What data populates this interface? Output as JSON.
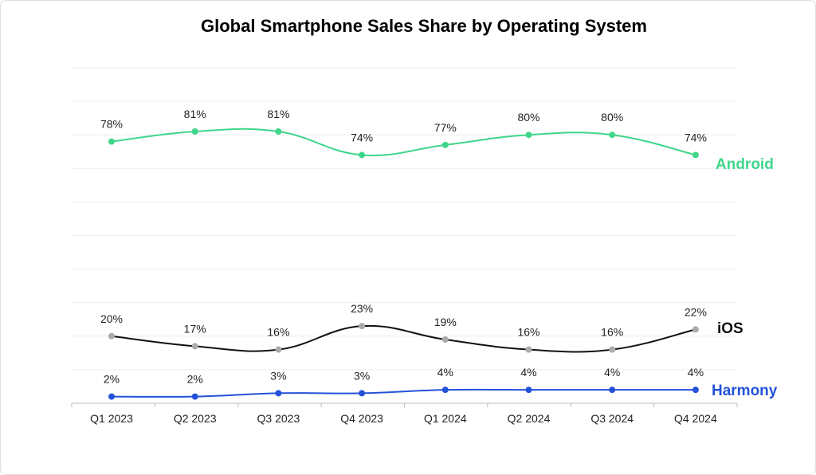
{
  "chart_data": {
    "type": "line",
    "title": "Global Smartphone Sales Share by Operating System",
    "categories": [
      "Q1 2023",
      "Q2 2023",
      "Q3 2023",
      "Q4 2023",
      "Q1 2024",
      "Q2 2024",
      "Q3 2024",
      "Q4 2024"
    ],
    "ylim": [
      0,
      100
    ],
    "grid": true,
    "legend": "inline-right",
    "series": [
      {
        "name": "Android",
        "color": "#3fd68a",
        "marker_color": "#3fd68a",
        "values": [
          78,
          81,
          81,
          74,
          77,
          80,
          80,
          74
        ],
        "labels": [
          "78%",
          "81%",
          "81%",
          "74%",
          "77%",
          "80%",
          "80%",
          "74%"
        ]
      },
      {
        "name": "iOS",
        "color": "#111111",
        "marker_color": "#aaaaaa",
        "values": [
          20,
          17,
          16,
          23,
          19,
          16,
          16,
          22
        ],
        "labels": [
          "20%",
          "17%",
          "16%",
          "23%",
          "19%",
          "16%",
          "16%",
          "22%"
        ]
      },
      {
        "name": "Harmony",
        "color": "#2352d9",
        "marker_color": "#2352d9",
        "values": [
          2,
          2,
          3,
          3,
          4,
          4,
          4,
          4
        ],
        "labels": [
          "2%",
          "2%",
          "3%",
          "3%",
          "4%",
          "4%",
          "4%",
          "4%"
        ]
      }
    ]
  }
}
